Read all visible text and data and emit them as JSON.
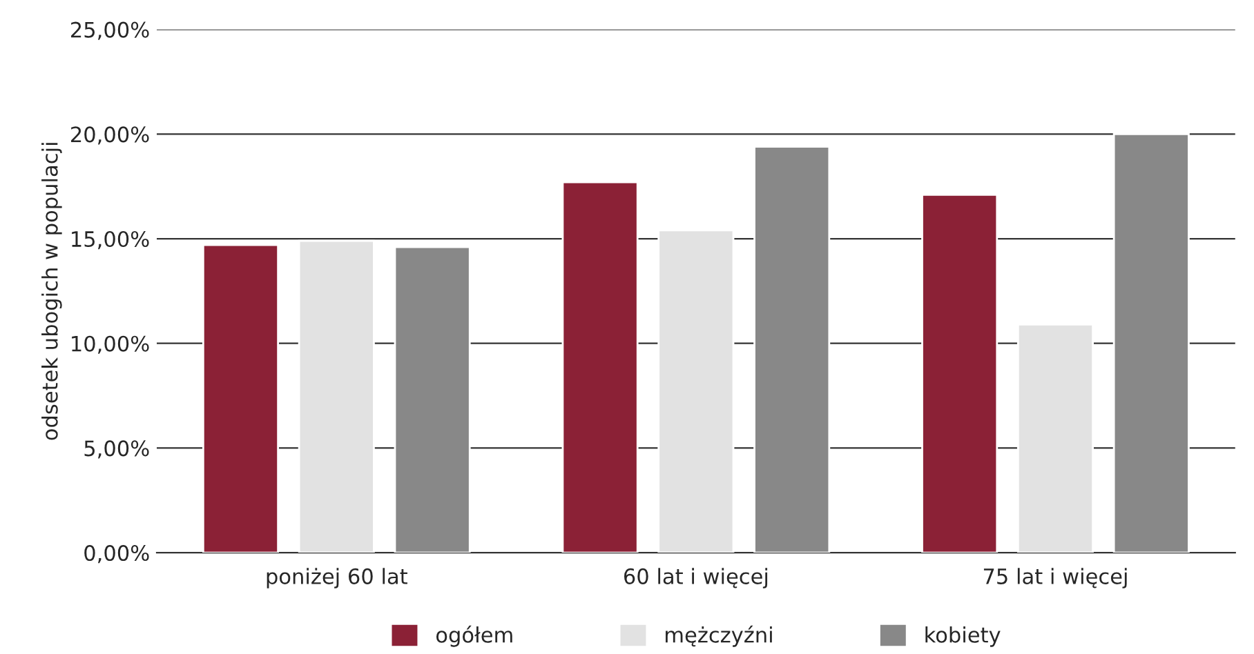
{
  "chart_data": {
    "type": "bar",
    "ylabel": "odsetek ubogich w populacji",
    "categories": [
      "poniżej 60 lat",
      "60 lat i więcej",
      "75 lat i więcej"
    ],
    "series": [
      {
        "name": "ogółem",
        "color": "#8b2136",
        "values": [
          14.7,
          17.7,
          17.1
        ]
      },
      {
        "name": "mężczyźni",
        "color": "#e2e2e2",
        "values": [
          14.9,
          15.4,
          10.9
        ]
      },
      {
        "name": "kobiety",
        "color": "#888888",
        "values": [
          14.6,
          19.4,
          20.0
        ]
      }
    ],
    "ylim": [
      0,
      25
    ],
    "yticks": [
      {
        "value": 0,
        "label": "0,00%"
      },
      {
        "value": 5,
        "label": "5,00%"
      },
      {
        "value": 10,
        "label": "10,00%"
      },
      {
        "value": 15,
        "label": "15,00%"
      },
      {
        "value": 20,
        "label": "20,00%"
      },
      {
        "value": 25,
        "label": "25,00%"
      }
    ],
    "grid": "y",
    "legend": "bottom"
  }
}
